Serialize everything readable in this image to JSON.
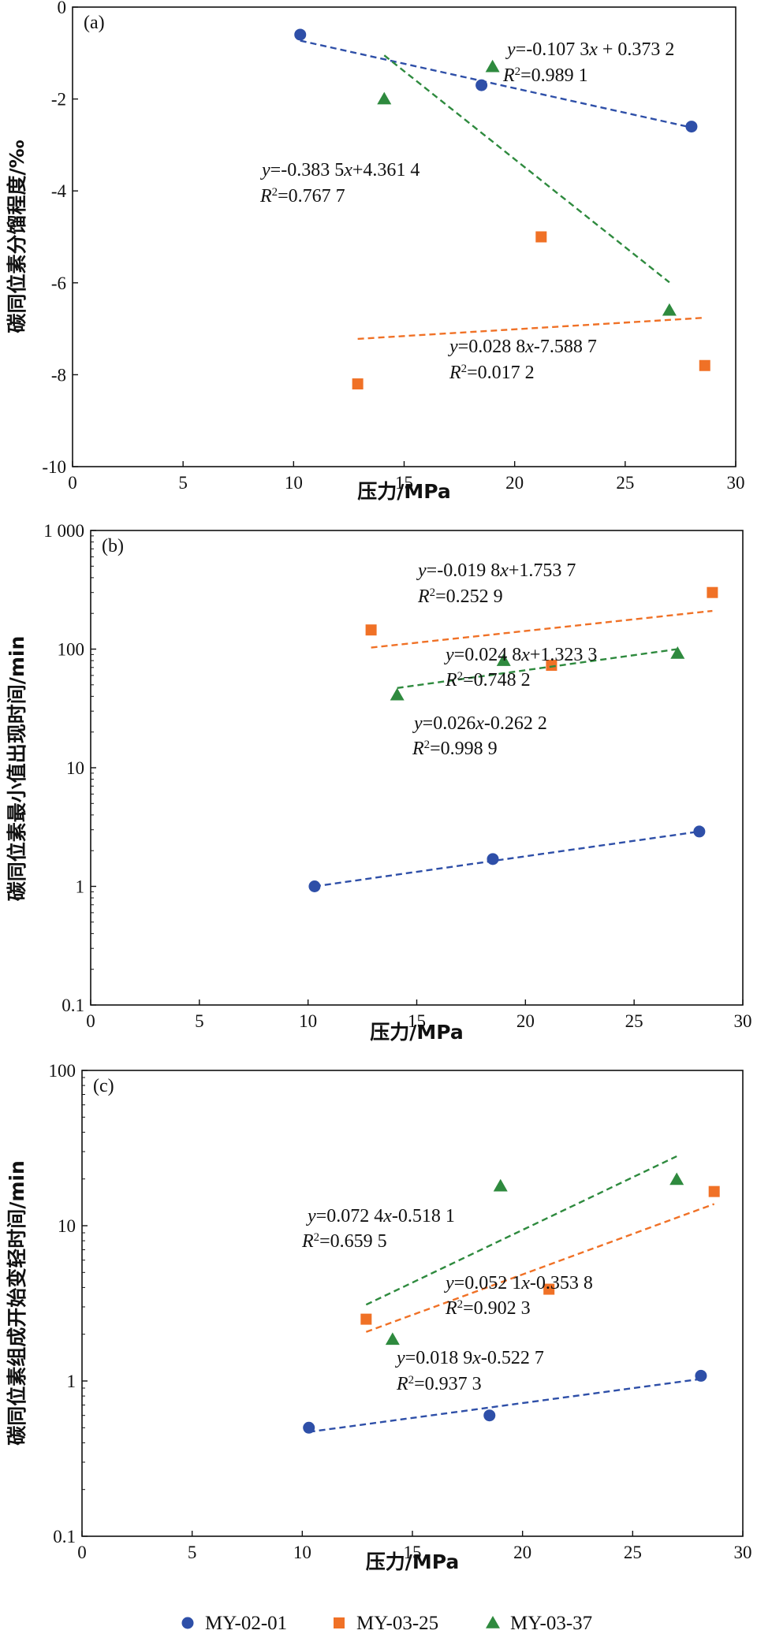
{
  "colors": {
    "MY-02-01": "#2e4fa8",
    "MY-03-25": "#f07126",
    "MY-03-37": "#2e8a3e"
  },
  "legend": {
    "items": [
      {
        "series": "MY-02-01",
        "label": "MY-02-01",
        "marker": "circle"
      },
      {
        "series": "MY-03-25",
        "label": "MY-03-25",
        "marker": "square"
      },
      {
        "series": "MY-03-37",
        "label": "MY-03-37",
        "marker": "triangle"
      }
    ]
  },
  "chart_data": [
    {
      "panel": "(a)",
      "type": "scatter",
      "xlabel": "压力/MPa",
      "ylabel": "碳同位素分馏程度/‰",
      "xlim": [
        0,
        30
      ],
      "ylim": [
        -10,
        0
      ],
      "yscale": "linear",
      "xticks": [
        "0",
        "5",
        "10",
        "15",
        "20",
        "25",
        "30"
      ],
      "yticks": [
        "0",
        "-2",
        "-4",
        "-6",
        "-8",
        "-10"
      ],
      "grid": false,
      "series": [
        {
          "name": "MY-02-01",
          "marker": "circle",
          "points": [
            [
              10.3,
              -0.6
            ],
            [
              18.5,
              -1.7
            ],
            [
              28.0,
              -2.6
            ]
          ],
          "fit": {
            "x": [
              10.3,
              28.0
            ],
            "y": [
              -0.73,
              -2.62
            ]
          },
          "equation": "y=-0.107 3x + 0.373 2",
          "r2": "R²=0.989 1"
        },
        {
          "name": "MY-03-25",
          "marker": "square",
          "points": [
            [
              12.9,
              -8.2
            ],
            [
              21.2,
              -5.0
            ],
            [
              28.6,
              -7.8
            ]
          ],
          "fit": {
            "x": [
              12.9,
              28.6
            ],
            "y": [
              -7.22,
              -6.76
            ]
          },
          "equation": "y=0.028 8x-7.588 7",
          "r2": "R²=0.017 2"
        },
        {
          "name": "MY-03-37",
          "marker": "triangle",
          "points": [
            [
              14.1,
              -2.0
            ],
            [
              19.0,
              -1.3
            ],
            [
              27.0,
              -6.6
            ]
          ],
          "fit": {
            "x": [
              14.1,
              27.0
            ],
            "y": [
              -1.05,
              -5.99
            ]
          },
          "equation": "y=-0.383 5x+4.361 4",
          "r2": "R²=0.767 7"
        }
      ]
    },
    {
      "panel": "(b)",
      "type": "scatter",
      "xlabel": "压力/MPa",
      "ylabel": "碳同位素最小值出现时间/min",
      "xlim": [
        0,
        30
      ],
      "ylim": [
        0.1,
        1000
      ],
      "yscale": "log",
      "xticks": [
        "0",
        "5",
        "10",
        "15",
        "20",
        "25",
        "30"
      ],
      "yticks": [
        "1 000",
        "100",
        "10",
        "1",
        "0.1"
      ],
      "grid": false,
      "series": [
        {
          "name": "MY-02-01",
          "marker": "circle",
          "points": [
            [
              10.3,
              1.0
            ],
            [
              18.5,
              1.7
            ],
            [
              28.0,
              2.9
            ]
          ],
          "fit": {
            "x": [
              10.3,
              28.0
            ],
            "y": [
              1.0,
              2.9
            ]
          },
          "equation": "y=0.026x-0.262 2",
          "r2": "R²=0.998 9"
        },
        {
          "name": "MY-03-25",
          "marker": "square",
          "points": [
            [
              12.9,
              145
            ],
            [
              21.2,
              73
            ],
            [
              28.6,
              300
            ]
          ],
          "fit": {
            "x": [
              12.9,
              28.6
            ],
            "y": [
              103,
              210
            ]
          },
          "equation": "y=-0.019 8x+1.753 7",
          "r2": "R²=0.252 9"
        },
        {
          "name": "MY-03-37",
          "marker": "triangle",
          "points": [
            [
              14.1,
              41
            ],
            [
              19.0,
              80
            ],
            [
              27.0,
              92
            ]
          ],
          "fit": {
            "x": [
              14.1,
              27.0
            ],
            "y": [
              47,
              100
            ]
          },
          "equation": "y=0.024 8x+1.323 3",
          "r2": "R²=0.748 2"
        }
      ]
    },
    {
      "panel": "(c)",
      "type": "scatter",
      "xlabel": "压力/MPa",
      "ylabel": "碳同位素组成开始变轻时间/min",
      "xlim": [
        0,
        30
      ],
      "ylim": [
        0.1,
        100
      ],
      "yscale": "log",
      "xticks": [
        "0",
        "5",
        "10",
        "15",
        "20",
        "25",
        "30"
      ],
      "yticks": [
        "100",
        "10",
        "1",
        "0.1"
      ],
      "grid": false,
      "series": [
        {
          "name": "MY-02-01",
          "marker": "circle",
          "points": [
            [
              10.3,
              0.5
            ],
            [
              18.5,
              0.6
            ],
            [
              28.1,
              1.08
            ]
          ],
          "fit": {
            "x": [
              10.3,
              28.1
            ],
            "y": [
              0.47,
              1.03
            ]
          },
          "equation": "y=0.018 9x-0.522 7",
          "r2": "R²=0.937 3"
        },
        {
          "name": "MY-03-25",
          "marker": "square",
          "points": [
            [
              12.9,
              2.5
            ],
            [
              21.2,
              3.9
            ],
            [
              28.7,
              16.6
            ]
          ],
          "fit": {
            "x": [
              12.9,
              28.7
            ],
            "y": [
              2.07,
              13.8
            ]
          },
          "equation": "y=0.052 1x-0.353 8",
          "r2": "R²=0.902 3"
        },
        {
          "name": "MY-03-37",
          "marker": "triangle",
          "points": [
            [
              14.1,
              1.85
            ],
            [
              19.0,
              18.0
            ],
            [
              27.0,
              19.8
            ]
          ],
          "fit": {
            "x": [
              12.9,
              27.0
            ],
            "y": [
              3.1,
              28.0
            ]
          },
          "equation": "y=0.072 4x-0.518 1",
          "r2": "R²=0.659 5"
        }
      ]
    }
  ]
}
